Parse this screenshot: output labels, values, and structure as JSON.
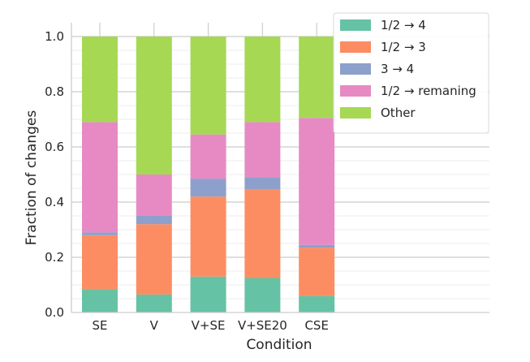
{
  "chart_data": {
    "type": "bar",
    "stacked": true,
    "categories": [
      "SE",
      "V",
      "V+SE",
      "V+SE20",
      "CSE"
    ],
    "series": [
      {
        "name": "1/2 → 4",
        "color": "#66c2a5",
        "values": [
          0.085,
          0.065,
          0.13,
          0.125,
          0.06
        ]
      },
      {
        "name": "1/2 → 3",
        "color": "#fc8d62",
        "values": [
          0.195,
          0.255,
          0.29,
          0.32,
          0.175
        ]
      },
      {
        "name": "3 → 4",
        "color": "#8da0cb",
        "values": [
          0.01,
          0.03,
          0.065,
          0.045,
          0.01
        ]
      },
      {
        "name": "1/2 → remaning",
        "color": "#e78ac3",
        "values": [
          0.4,
          0.15,
          0.16,
          0.2,
          0.46
        ]
      },
      {
        "name": "Other",
        "color": "#a6d854",
        "values": [
          0.31,
          0.5,
          0.355,
          0.31,
          0.295
        ]
      }
    ],
    "xlabel": "Condition",
    "ylabel": "Fraction of changes",
    "ylim": [
      0,
      1.05
    ],
    "yticks": [
      "0.0",
      "0.2",
      "0.4",
      "0.6",
      "0.8",
      "1.0"
    ],
    "grid": true,
    "legend_position": "top-right"
  }
}
